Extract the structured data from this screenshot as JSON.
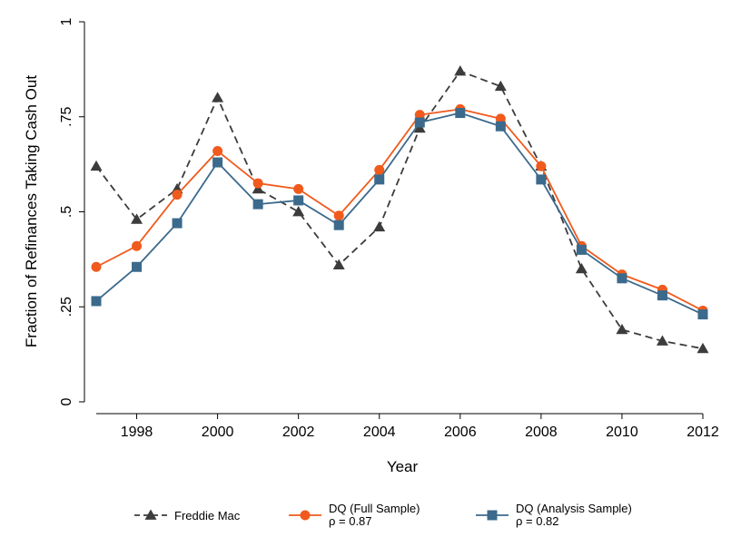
{
  "chart_data": {
    "type": "line",
    "title": "",
    "xlabel": "Year",
    "ylabel": "Fraction of Refinances Taking Cash Out",
    "xlim": [
      1997,
      2012
    ],
    "ylim": [
      0,
      1
    ],
    "x": [
      1997,
      1998,
      1999,
      2000,
      2001,
      2002,
      2003,
      2004,
      2005,
      2006,
      2007,
      2008,
      2009,
      2010,
      2011,
      2012
    ],
    "x_ticks": [
      1998,
      2000,
      2002,
      2004,
      2006,
      2008,
      2010,
      2012
    ],
    "x_tick_labels": [
      "1998",
      "2000",
      "2002",
      "2004",
      "2006",
      "2008",
      "2010",
      "2012"
    ],
    "y_ticks": [
      0,
      0.25,
      0.5,
      0.75,
      1
    ],
    "y_tick_labels": [
      "0",
      ".25",
      ".5",
      ".75",
      "1"
    ],
    "grid": false,
    "legend_position": "bottom",
    "series": [
      {
        "name": "Freddie Mac",
        "sublabel": "",
        "color": "#3c3c3c",
        "dash": "dashed",
        "marker": "triangle",
        "values": [
          0.62,
          0.48,
          0.56,
          0.8,
          0.56,
          0.5,
          0.36,
          0.46,
          0.72,
          0.87,
          0.83,
          0.62,
          0.35,
          0.19,
          0.16,
          0.14
        ]
      },
      {
        "name": "DQ (Full Sample)",
        "sublabel": "ρ = 0.87",
        "color": "#f05a1c",
        "dash": "solid",
        "marker": "circle",
        "values": [
          0.355,
          0.41,
          0.545,
          0.66,
          0.575,
          0.56,
          0.49,
          0.61,
          0.755,
          0.77,
          0.745,
          0.62,
          0.41,
          0.335,
          0.295,
          0.24
        ]
      },
      {
        "name": "DQ (Analysis Sample)",
        "sublabel": "ρ = 0.82",
        "color": "#3b6a8c",
        "dash": "solid",
        "marker": "square",
        "values": [
          0.265,
          0.355,
          0.47,
          0.63,
          0.52,
          0.53,
          0.465,
          0.585,
          0.735,
          0.76,
          0.725,
          0.585,
          0.4,
          0.325,
          0.28,
          0.23
        ]
      }
    ]
  }
}
